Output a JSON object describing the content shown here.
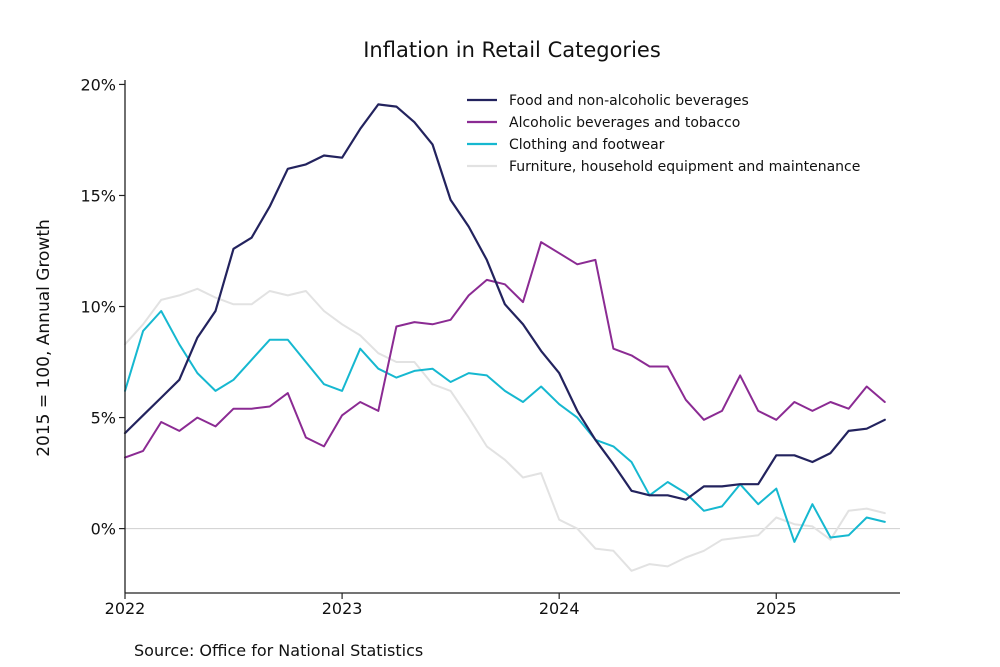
{
  "chart_data": {
    "type": "line",
    "title": "Inflation in Retail Categories",
    "xlabel": "",
    "ylabel": "2015 = 100, Annual Growth",
    "source": "Source: Office for National Statistics",
    "x_start": 2022.0,
    "x_step_months": 1,
    "xlim": [
      2022.0,
      2025.57
    ],
    "ylim": [
      -2.9,
      20.2
    ],
    "x_ticks": [
      {
        "value": 2022,
        "label": "2022"
      },
      {
        "value": 2023,
        "label": "2023"
      },
      {
        "value": 2024,
        "label": "2024"
      },
      {
        "value": 2025,
        "label": "2025"
      }
    ],
    "y_ticks": [
      {
        "value": 0,
        "label": "0%"
      },
      {
        "value": 5,
        "label": "5%"
      },
      {
        "value": 10,
        "label": "10%"
      },
      {
        "value": 15,
        "label": "15%"
      },
      {
        "value": 20,
        "label": "20%"
      }
    ],
    "zero_line": true,
    "legend_position": "top-right",
    "series": [
      {
        "name": "Food and non-alcoholic beverages",
        "color": "#23235e",
        "values": [
          4.3,
          5.1,
          5.9,
          6.7,
          8.6,
          9.8,
          12.6,
          13.1,
          14.5,
          16.2,
          16.4,
          16.8,
          16.7,
          18.0,
          19.1,
          19.0,
          18.3,
          17.3,
          14.8,
          13.6,
          12.1,
          10.1,
          9.2,
          8.0,
          7.0,
          5.3,
          4.0,
          2.9,
          1.7,
          1.5,
          1.5,
          1.3,
          1.9,
          1.9,
          2.0,
          2.0,
          3.3,
          3.3,
          3.0,
          3.4,
          4.4,
          4.5,
          4.9
        ]
      },
      {
        "name": "Alcoholic beverages and tobacco",
        "color": "#8b2b93",
        "values": [
          3.2,
          3.5,
          4.8,
          4.4,
          5.0,
          4.6,
          5.4,
          5.4,
          5.5,
          6.1,
          4.1,
          3.7,
          5.1,
          5.7,
          5.3,
          9.1,
          9.3,
          9.2,
          9.4,
          10.5,
          11.2,
          11.0,
          10.2,
          12.9,
          12.4,
          11.9,
          12.1,
          8.1,
          7.8,
          7.3,
          7.3,
          5.8,
          4.9,
          5.3,
          6.9,
          5.3,
          4.9,
          5.7,
          5.3,
          5.7,
          5.4,
          6.4,
          5.7
        ]
      },
      {
        "name": "Clothing and footwear",
        "color": "#16b8d0",
        "values": [
          6.2,
          8.9,
          9.8,
          8.3,
          7.0,
          6.2,
          6.7,
          7.6,
          8.5,
          8.5,
          7.5,
          6.5,
          6.2,
          8.1,
          7.2,
          6.8,
          7.1,
          7.2,
          6.6,
          7.0,
          6.9,
          6.2,
          5.7,
          6.4,
          5.6,
          5.0,
          4.0,
          3.7,
          3.0,
          1.5,
          2.1,
          1.6,
          0.8,
          1.0,
          2.0,
          1.1,
          1.8,
          -0.6,
          1.1,
          -0.4,
          -0.3,
          0.5,
          0.3
        ]
      },
      {
        "name": "Furniture, household equipment and maintenance",
        "color": "#e2e2e2",
        "values": [
          8.3,
          9.2,
          10.3,
          10.5,
          10.8,
          10.4,
          10.1,
          10.1,
          10.7,
          10.5,
          10.7,
          9.8,
          9.2,
          8.7,
          7.9,
          7.5,
          7.5,
          6.5,
          6.2,
          5.0,
          3.7,
          3.1,
          2.3,
          2.5,
          0.4,
          0.0,
          -0.9,
          -1.0,
          -1.9,
          -1.6,
          -1.7,
          -1.3,
          -1.0,
          -0.5,
          -0.4,
          -0.3,
          0.5,
          0.2,
          0.1,
          -0.5,
          0.8,
          0.9,
          0.7
        ]
      }
    ]
  }
}
